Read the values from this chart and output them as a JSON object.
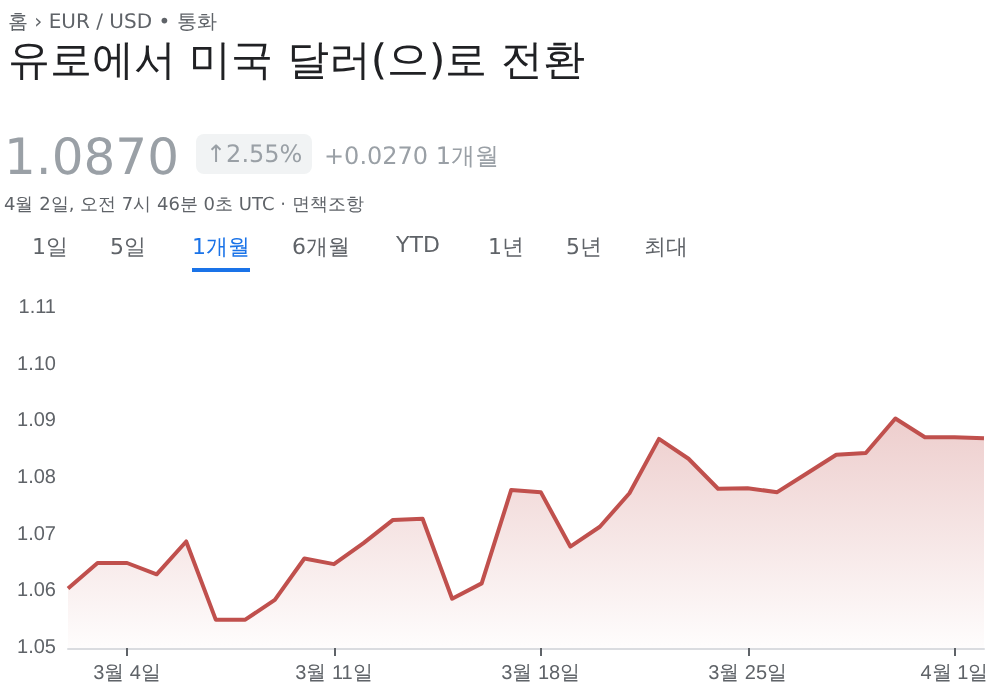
{
  "chart_data": {
    "type": "area",
    "title": "유로에서 미국 달러(으)로 전환",
    "annotations": [
      "홈 › EUR / USD • 통화",
      "1.0870",
      "↑2.55%",
      "+0.0270 1개월",
      "4월 2일, 오전 7시 46분 0초 UTC · 면책조항",
      "1일",
      "5일",
      "1개월",
      "6개월",
      "YTD",
      "1년",
      "5년",
      "최대"
    ],
    "x": [
      "--03-02",
      "--03-03",
      "--03-04",
      "--03-05",
      "--03-06",
      "--03-07",
      "--03-08",
      "--03-09",
      "--03-10",
      "--03-11",
      "--03-12",
      "--03-13",
      "--03-14",
      "--03-15",
      "--03-16",
      "--03-17",
      "--03-18",
      "--03-19",
      "--03-20",
      "--03-21",
      "--03-22",
      "--03-23",
      "--03-24",
      "--03-25",
      "--03-26",
      "--03-27",
      "--03-28",
      "--03-29",
      "--03-30",
      "--03-31",
      "--04-01",
      "--04-02"
    ],
    "series": [
      {
        "color": "#c0504d",
        "values": [
          1.0605,
          1.065,
          1.065,
          1.063,
          1.0688,
          1.055,
          1.055,
          1.0585,
          1.0658,
          1.0648,
          1.0685,
          1.0726,
          1.0728,
          1.0587,
          1.0614,
          1.0779,
          1.0775,
          1.0679,
          1.0714,
          1.0773,
          1.0869,
          1.0834,
          1.0781,
          1.0782,
          1.0775,
          1.0808,
          1.0841,
          1.0844,
          1.0905,
          1.0872,
          1.0872,
          1.087
        ]
      }
    ],
    "xlim": [
      "--03-02",
      "--04-02"
    ],
    "xticks": [
      {
        "value": "--03-04",
        "label": "3월 4일"
      },
      {
        "value": "--03-11",
        "label": "3월 11일"
      },
      {
        "value": "--03-18",
        "label": "3월 18일"
      },
      {
        "value": "--03-25",
        "label": "3월 25일"
      },
      {
        "value": "--04-01",
        "label": "4월 1일"
      }
    ],
    "ylim": [
      1.05,
      1.11
    ],
    "yticks": [
      1.05,
      1.06,
      1.07,
      1.08,
      1.09,
      {
        "value": 1.1,
        "label": "1.10"
      },
      1.11
    ],
    "grid": false
  }
}
